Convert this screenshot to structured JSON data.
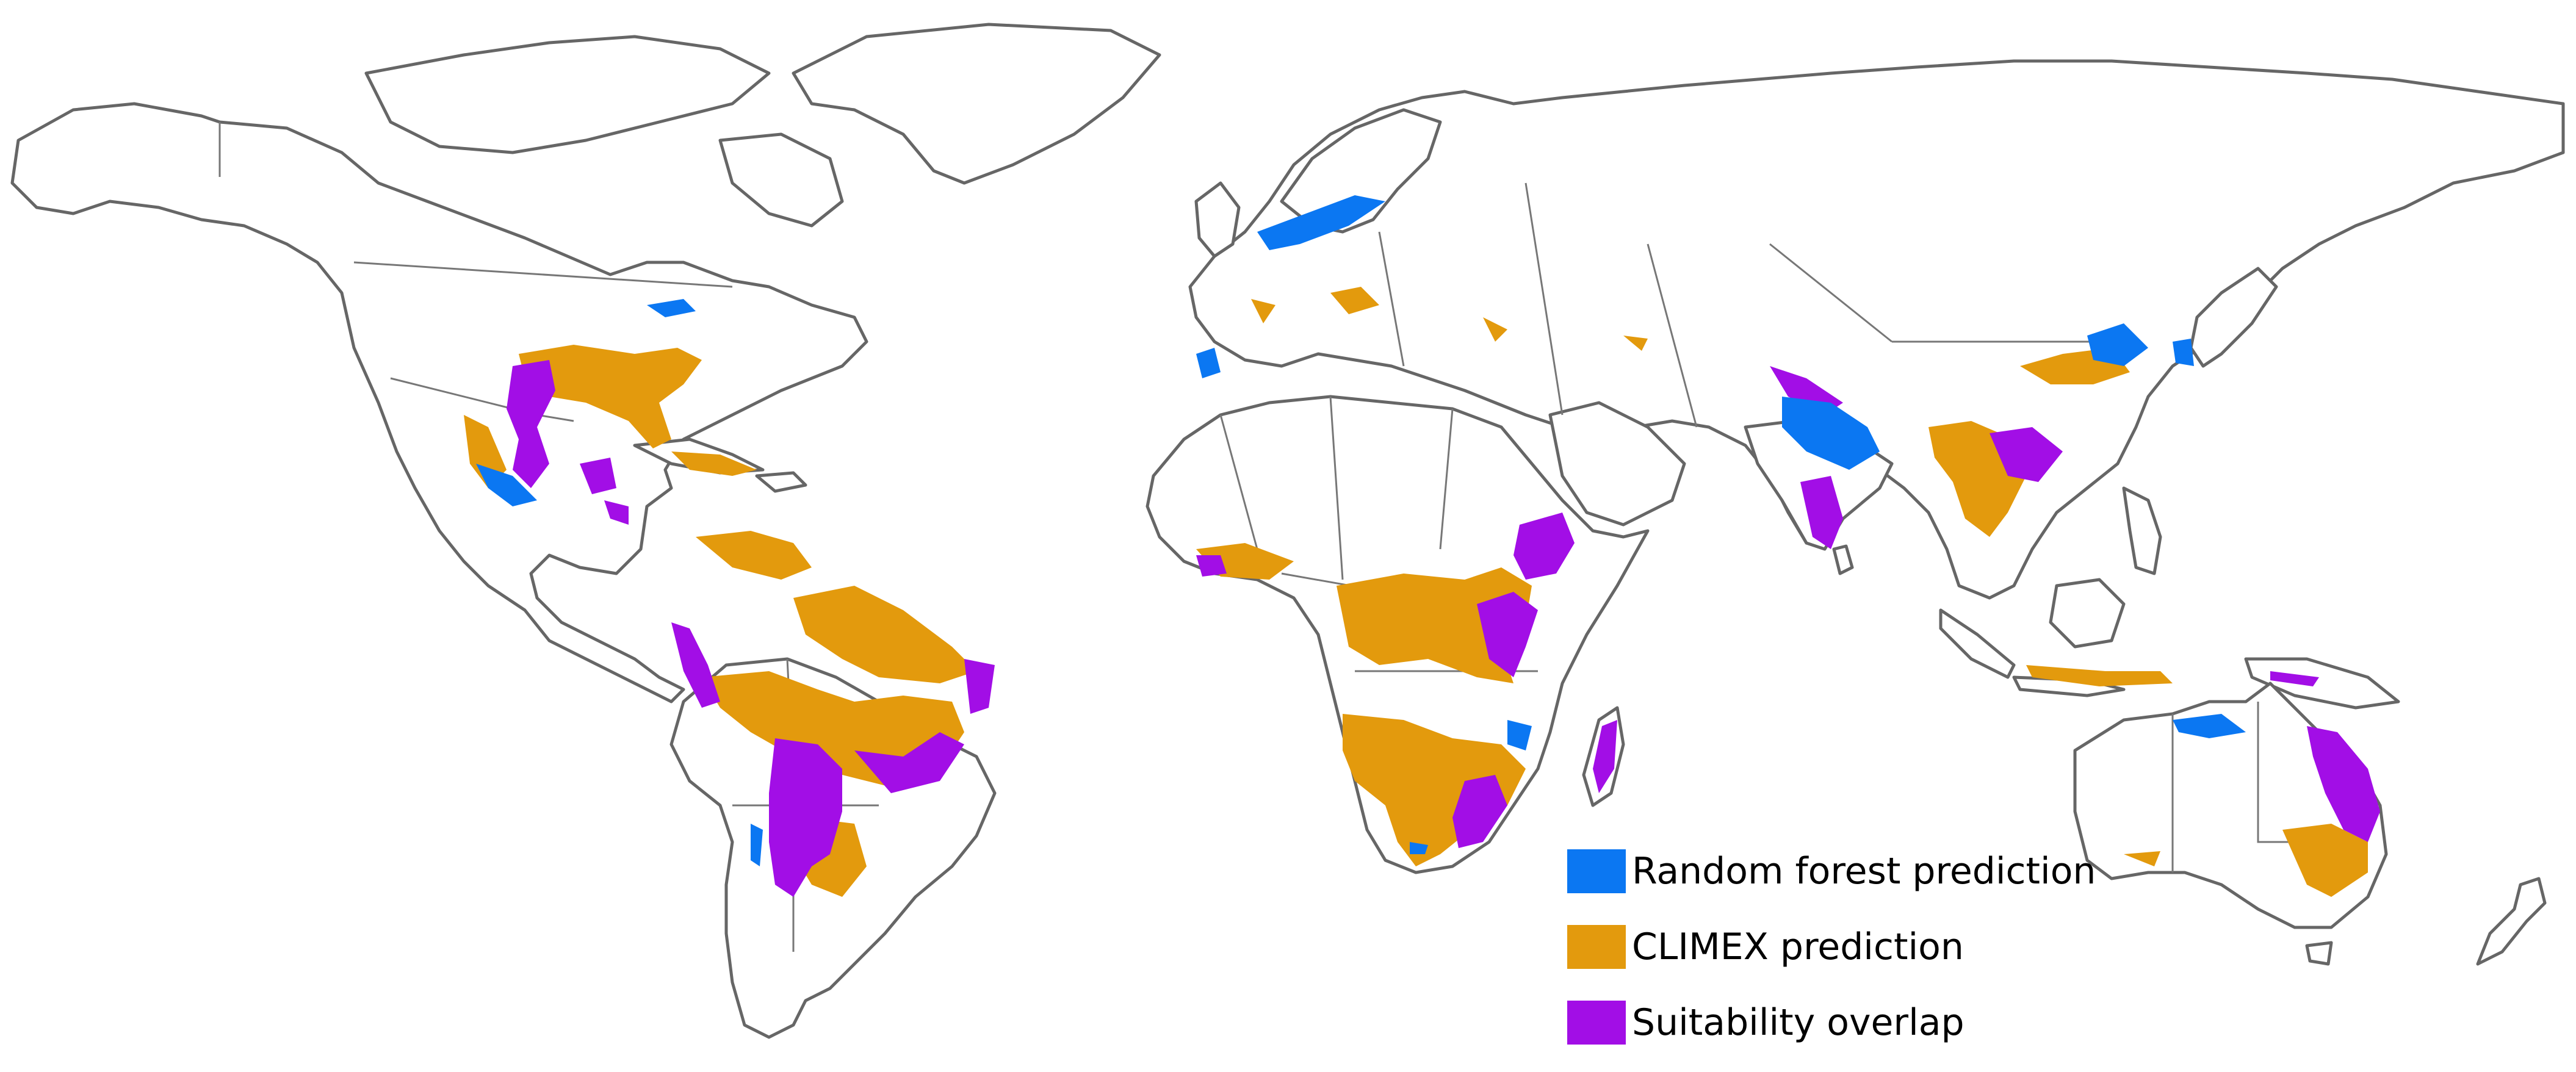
{
  "colors": {
    "random_forest": "#0b77f2",
    "climex": "#e39a0d",
    "overlap": "#a20ee6",
    "land_fill": "#ffffff",
    "coastline": "#666666"
  },
  "legend": [
    {
      "key": "random_forest",
      "label": "Random forest prediction"
    },
    {
      "key": "climex",
      "label": "CLIMEX prediction"
    },
    {
      "key": "overlap",
      "label": "Suitability overlap"
    }
  ]
}
